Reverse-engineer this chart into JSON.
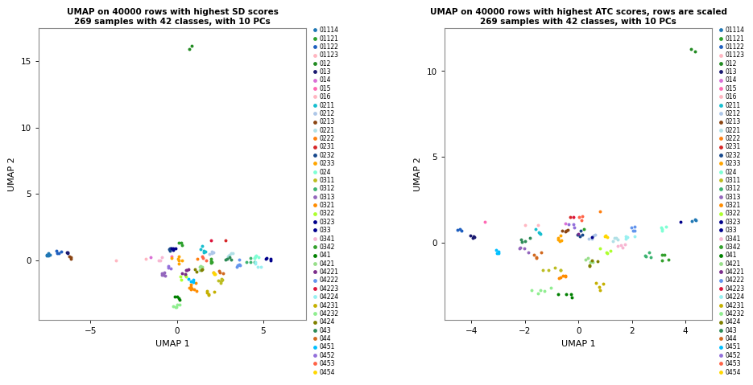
{
  "title1": "UMAP on 40000 rows with highest SD scores\n269 samples with 42 classes, with 10 PCs",
  "title2": "UMAP on 40000 rows with highest ATC scores, rows are scaled\n269 samples with 42 classes, with 10 PCs",
  "xlabel": "UMAP 1",
  "ylabel": "UMAP 2",
  "class_list": [
    "01114",
    "01121",
    "01122",
    "01123",
    "012",
    "013",
    "014",
    "015",
    "016",
    "0211",
    "0212",
    "0213",
    "0221",
    "0222",
    "0231",
    "0232",
    "0233",
    "024",
    "0311",
    "0312",
    "0313",
    "0321",
    "0322",
    "0323",
    "033",
    "0341",
    "0342",
    "041",
    "0421",
    "04221",
    "04222",
    "04223",
    "04224",
    "04231",
    "04232",
    "0424",
    "043",
    "044",
    "0451",
    "0452",
    "0453",
    "0454"
  ],
  "color_map": {
    "01114": "#1F77B4",
    "01121": "#2CA02C",
    "01122": "#1F5FBF",
    "01123": "#FFB6C1",
    "012": "#228B22",
    "013": "#191970",
    "014": "#DA70D6",
    "015": "#FF69B4",
    "016": "#FFB6C1",
    "0211": "#17BECF",
    "0212": "#AEC7E8",
    "0213": "#8B4513",
    "0221": "#B0E0E6",
    "0222": "#FF7F0E",
    "0231": "#D62728",
    "0232": "#17488C",
    "0233": "#FFA500",
    "024": "#7FFFD4",
    "0311": "#BCBD22",
    "0312": "#3CB371",
    "0313": "#9467BD",
    "0321": "#FF8C00",
    "0322": "#ADFF2F",
    "0323": "#00008B",
    "033": "#00008B",
    "0341": "#F7B6D2",
    "0342": "#33A02C",
    "041": "#008000",
    "0421": "#98DF8A",
    "04221": "#7B2D8B",
    "04222": "#6495ED",
    "04223": "#DC143C",
    "04224": "#98F0F0",
    "04231": "#C5B000",
    "04232": "#90EE90",
    "0424": "#808000",
    "043": "#2E8B57",
    "044": "#D2691E",
    "0451": "#00BFFF",
    "0452": "#9370DB",
    "0453": "#FF6347",
    "0454": "#FFD700"
  },
  "plot1_xlim": [
    -8.0,
    7.5
  ],
  "plot1_ylim": [
    -4.5,
    17.5
  ],
  "plot1_xticks": [
    -5,
    0,
    5
  ],
  "plot1_yticks": [
    0,
    5,
    10,
    15
  ],
  "plot2_xlim": [
    -5.0,
    5.0
  ],
  "plot2_ylim": [
    -4.5,
    12.5
  ],
  "plot2_xticks": [
    -4,
    -2,
    0,
    2,
    4
  ],
  "plot2_yticks": [
    0,
    5,
    10
  ]
}
